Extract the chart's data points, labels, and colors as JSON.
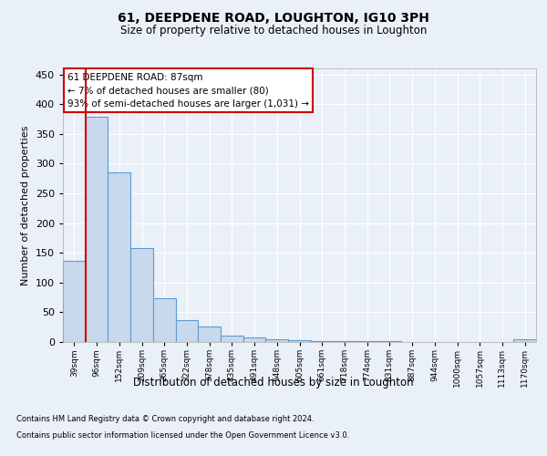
{
  "title1": "61, DEEPDENE ROAD, LOUGHTON, IG10 3PH",
  "title2": "Size of property relative to detached houses in Loughton",
  "xlabel": "Distribution of detached houses by size in Loughton",
  "ylabel": "Number of detached properties",
  "categories": [
    "39sqm",
    "96sqm",
    "152sqm",
    "209sqm",
    "265sqm",
    "322sqm",
    "378sqm",
    "435sqm",
    "491sqm",
    "548sqm",
    "605sqm",
    "661sqm",
    "718sqm",
    "774sqm",
    "831sqm",
    "887sqm",
    "944sqm",
    "1000sqm",
    "1057sqm",
    "1113sqm",
    "1170sqm"
  ],
  "values": [
    136,
    378,
    285,
    158,
    74,
    37,
    26,
    10,
    7,
    5,
    3,
    2,
    2,
    1,
    1,
    0,
    0,
    0,
    0,
    0,
    4
  ],
  "bar_color": "#c9d9ed",
  "bar_edge_color": "#5b9bd5",
  "annotation_text": "61 DEEPDENE ROAD: 87sqm\n← 7% of detached houses are smaller (80)\n93% of semi-detached houses are larger (1,031) →",
  "annotation_box_color": "#ffffff",
  "annotation_box_edge_color": "#cc0000",
  "vline_color": "#cc0000",
  "ylim": [
    0,
    460
  ],
  "yticks": [
    0,
    50,
    100,
    150,
    200,
    250,
    300,
    350,
    400,
    450
  ],
  "footer1": "Contains HM Land Registry data © Crown copyright and database right 2024.",
  "footer2": "Contains public sector information licensed under the Open Government Licence v3.0.",
  "bg_color": "#eaf0f8",
  "plot_bg_color": "#eaf0f8",
  "grid_color": "#ffffff"
}
